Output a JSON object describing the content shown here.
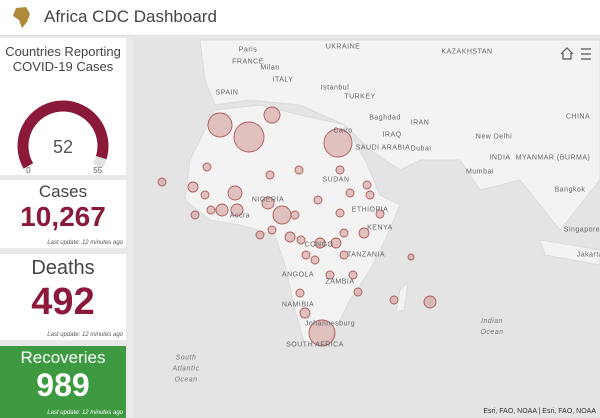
{
  "header": {
    "title": "Africa CDC Dashboard"
  },
  "countries_reporting": {
    "title": "Countries Reporting COVID-19 Cases",
    "value": 52,
    "min": 0,
    "max": 55
  },
  "cases": {
    "title": "Cases",
    "value": {
      "value": 10267,
      "label": "10,267"
    },
    "last_update": "Last update: 12 minutes ago"
  },
  "deaths": {
    "title": "Deaths",
    "value": 492,
    "last_update": "Last update: 12 minutes ago"
  },
  "recoveries": {
    "title": "Recoveries",
    "value": 989,
    "last_update": "Last update: 12 minutes ago"
  },
  "map": {
    "labels": [
      "Paris",
      "UKRAINE",
      "FRANCE",
      "Milan",
      "ITALY",
      "Istanbul",
      "SPAIN",
      "TURKEY",
      "KAZAKHSTAN",
      "Baghdad",
      "IRAQ",
      "IRAN",
      "Cairo",
      "SAUDI ARABIA",
      "Dubai",
      "New Delhi",
      "INDIA",
      "Mumbai",
      "CHINA",
      "MYANMAR (BURMA)",
      "Bangkok",
      "SUDAN",
      "ETHIOPIA",
      "NIGERIA",
      "Accra",
      "CONGO",
      "KENYA",
      "TANZANIA",
      "ANGOLA",
      "ZAMBIA",
      "NAMIBIA",
      "Johannesburg",
      "SOUTH AFRICA",
      "Singapore",
      "Jakarta",
      "South Atlantic Ocean",
      "Indian Ocean"
    ],
    "attribution": "Esri, FAO, NOAA | Esri, FAO, NOAA"
  }
}
